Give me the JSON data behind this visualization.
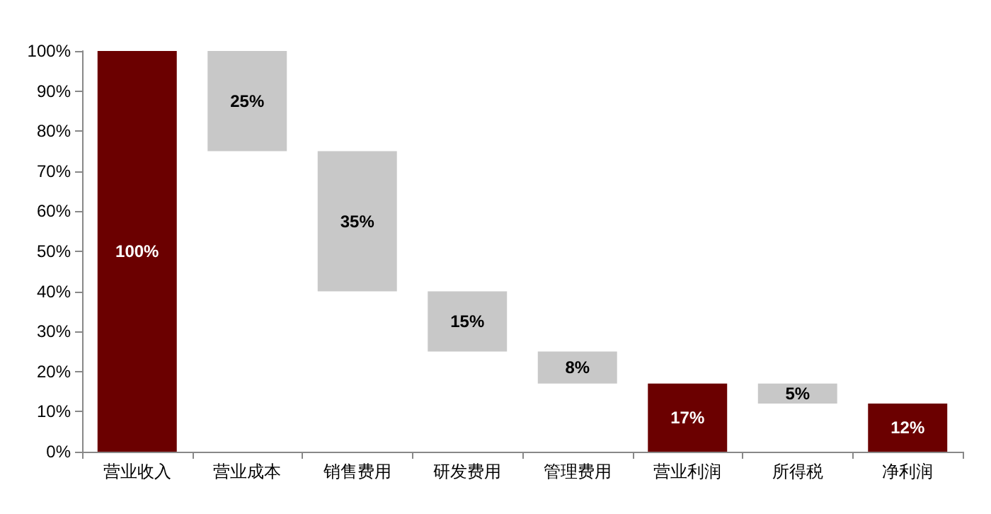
{
  "chart_data": {
    "type": "bar",
    "categories": [
      "营业收入",
      "营业成本",
      "销售费用",
      "研发费用",
      "管理费用",
      "营业利润",
      "所得税",
      "净利润"
    ],
    "values": [
      100,
      25,
      35,
      15,
      8,
      17,
      5,
      12
    ],
    "base": [
      0,
      75,
      40,
      25,
      17,
      0,
      12,
      0
    ],
    "colors": [
      "#6b0000",
      "#c8c8c8",
      "#c8c8c8",
      "#c8c8c8",
      "#c8c8c8",
      "#6b0000",
      "#c8c8c8",
      "#6b0000"
    ],
    "value_labels": [
      "100%",
      "25%",
      "35%",
      "15%",
      "8%",
      "17%",
      "5%",
      "12%"
    ],
    "ylim": [
      0,
      100
    ],
    "yticks": [
      {
        "value": 0,
        "label": "0%"
      },
      {
        "value": 10,
        "label": "10%"
      },
      {
        "value": 20,
        "label": "20%"
      },
      {
        "value": 30,
        "label": "30%"
      },
      {
        "value": 40,
        "label": "40%"
      },
      {
        "value": 50,
        "label": "50%"
      },
      {
        "value": 60,
        "label": "60%"
      },
      {
        "value": 70,
        "label": "70%"
      },
      {
        "value": 80,
        "label": "80%"
      },
      {
        "value": 90,
        "label": "90%"
      },
      {
        "value": 100,
        "label": "100%"
      }
    ],
    "grid": false
  }
}
